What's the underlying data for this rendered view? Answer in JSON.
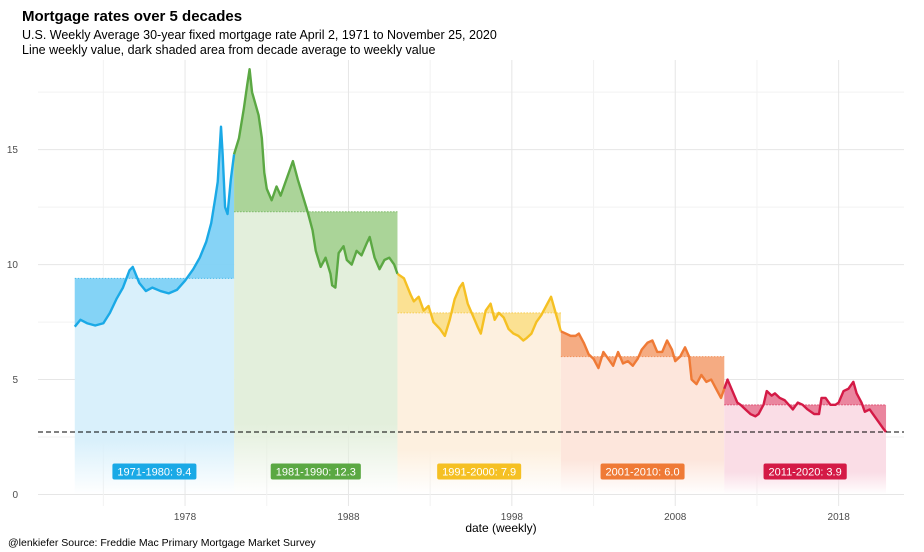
{
  "chart_data": {
    "type": "line",
    "title": "Mortgage rates over 5 decades",
    "subtitle_lines": [
      "U.S. Weekly Average 30-year fixed mortgage rate April 2, 1971 to November 25, 2020",
      "Line weekly value, dark shaded area from decade average to weekly value"
    ],
    "caption": "@lenkiefer Source: Freddie Mac Primary Mortgage Market Survey",
    "xlabel": "date (weekly)",
    "ylabel": "",
    "xlim": [
      1969.0,
      2022.0
    ],
    "ylim": [
      -0.5,
      18.9
    ],
    "x_ticks": [
      1978,
      1988,
      1998,
      2008,
      2018
    ],
    "x_tick_labels": [
      "1978",
      "1988",
      "1998",
      "2008",
      "2018"
    ],
    "y_ticks": [
      0,
      5,
      10,
      15
    ],
    "y_tick_labels": [
      "0",
      "5",
      "10",
      "15"
    ],
    "grid": true,
    "reference_line": 2.72,
    "decades": [
      {
        "label": "1971-1980:",
        "avg_text": "9.4",
        "start": 1971.25,
        "end": 1981.0,
        "average": 9.4,
        "line_color": "#1aa9e6",
        "dark_fill": "#7fd1f5",
        "light_fill": "#d9f0fb",
        "points": [
          [
            1971.25,
            7.3
          ],
          [
            1971.6,
            7.6
          ],
          [
            1972.0,
            7.45
          ],
          [
            1972.5,
            7.35
          ],
          [
            1973.0,
            7.45
          ],
          [
            1973.4,
            7.9
          ],
          [
            1973.8,
            8.5
          ],
          [
            1974.2,
            9.0
          ],
          [
            1974.6,
            9.75
          ],
          [
            1974.8,
            9.9
          ],
          [
            1975.2,
            9.2
          ],
          [
            1975.6,
            8.85
          ],
          [
            1976.0,
            9.0
          ],
          [
            1976.5,
            8.85
          ],
          [
            1977.0,
            8.75
          ],
          [
            1977.5,
            8.9
          ],
          [
            1978.0,
            9.3
          ],
          [
            1978.5,
            9.8
          ],
          [
            1978.9,
            10.3
          ],
          [
            1979.3,
            11.0
          ],
          [
            1979.6,
            11.8
          ],
          [
            1979.85,
            12.9
          ],
          [
            1980.0,
            13.6
          ],
          [
            1980.2,
            16.0
          ],
          [
            1980.3,
            14.8
          ],
          [
            1980.45,
            12.5
          ],
          [
            1980.6,
            12.2
          ],
          [
            1980.8,
            13.7
          ],
          [
            1981.0,
            14.8
          ]
        ]
      },
      {
        "label": "1981-1990:",
        "avg_text": "12.3",
        "start": 1981.0,
        "end": 1991.0,
        "average": 12.3,
        "line_color": "#5ba843",
        "dark_fill": "#a7d294",
        "light_fill": "#e3efdc",
        "points": [
          [
            1981.0,
            14.8
          ],
          [
            1981.3,
            15.5
          ],
          [
            1981.6,
            16.8
          ],
          [
            1981.8,
            17.8
          ],
          [
            1981.95,
            18.5
          ],
          [
            1982.1,
            17.5
          ],
          [
            1982.3,
            17.0
          ],
          [
            1982.5,
            16.5
          ],
          [
            1982.7,
            15.5
          ],
          [
            1982.85,
            14.0
          ],
          [
            1983.0,
            13.3
          ],
          [
            1983.3,
            12.8
          ],
          [
            1983.6,
            13.4
          ],
          [
            1983.85,
            13.0
          ],
          [
            1984.1,
            13.5
          ],
          [
            1984.4,
            14.1
          ],
          [
            1984.6,
            14.5
          ],
          [
            1984.9,
            13.7
          ],
          [
            1985.2,
            13.0
          ],
          [
            1985.5,
            12.3
          ],
          [
            1985.8,
            11.5
          ],
          [
            1986.0,
            10.6
          ],
          [
            1986.3,
            9.9
          ],
          [
            1986.6,
            10.3
          ],
          [
            1986.9,
            9.6
          ],
          [
            1987.0,
            9.1
          ],
          [
            1987.2,
            9.0
          ],
          [
            1987.4,
            10.5
          ],
          [
            1987.7,
            10.8
          ],
          [
            1987.9,
            10.2
          ],
          [
            1988.2,
            10.0
          ],
          [
            1988.5,
            10.6
          ],
          [
            1988.8,
            10.4
          ],
          [
            1989.1,
            10.9
          ],
          [
            1989.3,
            11.2
          ],
          [
            1989.6,
            10.3
          ],
          [
            1989.9,
            9.8
          ],
          [
            1990.2,
            10.2
          ],
          [
            1990.5,
            10.3
          ],
          [
            1990.8,
            10.0
          ],
          [
            1991.0,
            9.6
          ]
        ]
      },
      {
        "label": "1991-2000:",
        "avg_text": "7.9",
        "start": 1991.0,
        "end": 2001.0,
        "average": 7.9,
        "line_color": "#f5c023",
        "dark_fill": "#fbdf8d",
        "light_fill": "#fdf0df",
        "points": [
          [
            1991.0,
            9.6
          ],
          [
            1991.4,
            9.4
          ],
          [
            1991.8,
            8.7
          ],
          [
            1992.0,
            8.4
          ],
          [
            1992.3,
            8.6
          ],
          [
            1992.6,
            8.0
          ],
          [
            1992.9,
            8.2
          ],
          [
            1993.2,
            7.5
          ],
          [
            1993.6,
            7.2
          ],
          [
            1993.9,
            6.9
          ],
          [
            1994.2,
            7.6
          ],
          [
            1994.5,
            8.5
          ],
          [
            1994.8,
            9.0
          ],
          [
            1995.0,
            9.2
          ],
          [
            1995.3,
            8.3
          ],
          [
            1995.6,
            7.8
          ],
          [
            1995.9,
            7.3
          ],
          [
            1996.1,
            7.0
          ],
          [
            1996.4,
            8.0
          ],
          [
            1996.7,
            8.3
          ],
          [
            1996.95,
            7.6
          ],
          [
            1997.2,
            7.9
          ],
          [
            1997.5,
            7.7
          ],
          [
            1997.8,
            7.2
          ],
          [
            1998.1,
            7.0
          ],
          [
            1998.4,
            6.9
          ],
          [
            1998.7,
            6.7
          ],
          [
            1998.9,
            6.8
          ],
          [
            1999.2,
            7.0
          ],
          [
            1999.5,
            7.5
          ],
          [
            1999.8,
            7.8
          ],
          [
            2000.1,
            8.2
          ],
          [
            2000.4,
            8.6
          ],
          [
            2000.6,
            8.1
          ],
          [
            2000.8,
            7.6
          ],
          [
            2001.0,
            7.1
          ]
        ]
      },
      {
        "label": "2001-2010:",
        "avg_text": "6.0",
        "start": 2001.0,
        "end": 2011.0,
        "average": 6.0,
        "line_color": "#ef7a36",
        "dark_fill": "#f4a87c",
        "light_fill": "#fde6dc",
        "points": [
          [
            2001.0,
            7.1
          ],
          [
            2001.3,
            7.0
          ],
          [
            2001.6,
            6.9
          ],
          [
            2001.9,
            6.9
          ],
          [
            2002.1,
            7.0
          ],
          [
            2002.4,
            6.6
          ],
          [
            2002.7,
            6.1
          ],
          [
            2003.0,
            5.9
          ],
          [
            2003.3,
            5.5
          ],
          [
            2003.6,
            6.2
          ],
          [
            2003.9,
            5.9
          ],
          [
            2004.2,
            5.6
          ],
          [
            2004.5,
            6.2
          ],
          [
            2004.8,
            5.7
          ],
          [
            2005.1,
            5.8
          ],
          [
            2005.4,
            5.6
          ],
          [
            2005.7,
            5.9
          ],
          [
            2005.95,
            6.3
          ],
          [
            2006.3,
            6.6
          ],
          [
            2006.6,
            6.7
          ],
          [
            2006.9,
            6.2
          ],
          [
            2007.2,
            6.2
          ],
          [
            2007.5,
            6.7
          ],
          [
            2007.8,
            6.3
          ],
          [
            2008.0,
            5.8
          ],
          [
            2008.3,
            6.0
          ],
          [
            2008.6,
            6.4
          ],
          [
            2008.85,
            6.0
          ],
          [
            2009.0,
            5.0
          ],
          [
            2009.3,
            4.8
          ],
          [
            2009.6,
            5.2
          ],
          [
            2009.9,
            4.9
          ],
          [
            2010.2,
            5.0
          ],
          [
            2010.5,
            4.6
          ],
          [
            2010.8,
            4.2
          ],
          [
            2011.0,
            4.6
          ]
        ]
      },
      {
        "label": "2011-2020:",
        "avg_text": "3.9",
        "start": 2011.0,
        "end": 2020.9,
        "average": 3.9,
        "line_color": "#d41a46",
        "dark_fill": "#e9809a",
        "light_fill": "#fadde6",
        "points": [
          [
            2011.0,
            4.6
          ],
          [
            2011.2,
            5.0
          ],
          [
            2011.5,
            4.5
          ],
          [
            2011.8,
            4.0
          ],
          [
            2012.0,
            3.9
          ],
          [
            2012.3,
            3.7
          ],
          [
            2012.6,
            3.5
          ],
          [
            2012.9,
            3.4
          ],
          [
            2013.1,
            3.5
          ],
          [
            2013.4,
            3.9
          ],
          [
            2013.6,
            4.5
          ],
          [
            2013.9,
            4.3
          ],
          [
            2014.1,
            4.4
          ],
          [
            2014.4,
            4.2
          ],
          [
            2014.7,
            4.1
          ],
          [
            2014.95,
            3.9
          ],
          [
            2015.2,
            3.7
          ],
          [
            2015.5,
            4.0
          ],
          [
            2015.8,
            3.9
          ],
          [
            2016.1,
            3.7
          ],
          [
            2016.5,
            3.5
          ],
          [
            2016.8,
            3.5
          ],
          [
            2016.95,
            4.2
          ],
          [
            2017.2,
            4.2
          ],
          [
            2017.5,
            3.9
          ],
          [
            2017.8,
            3.9
          ],
          [
            2018.0,
            4.0
          ],
          [
            2018.3,
            4.5
          ],
          [
            2018.6,
            4.6
          ],
          [
            2018.9,
            4.9
          ],
          [
            2019.1,
            4.4
          ],
          [
            2019.4,
            4.0
          ],
          [
            2019.6,
            3.6
          ],
          [
            2019.9,
            3.7
          ],
          [
            2020.1,
            3.5
          ],
          [
            2020.4,
            3.2
          ],
          [
            2020.7,
            2.9
          ],
          [
            2020.9,
            2.72
          ]
        ]
      }
    ]
  }
}
